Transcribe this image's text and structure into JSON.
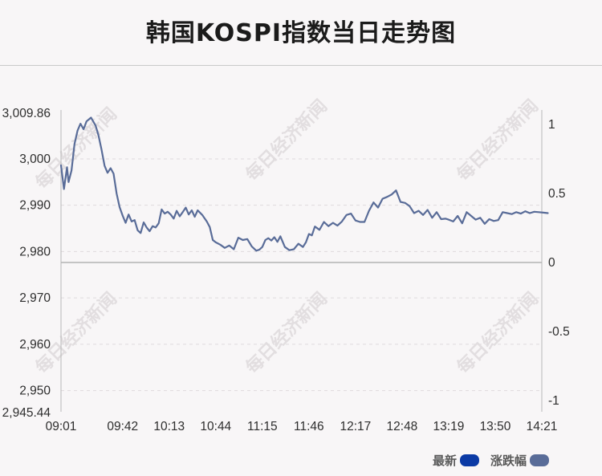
{
  "title": "韩国KOSPI指数当日走势图",
  "watermark": "每日经济新闻",
  "colors": {
    "latest": "#0b3aa5",
    "change": "#596c98"
  },
  "chart_data": {
    "type": "line",
    "title": "韩国KOSPI指数当日走势图",
    "prev_close": 2977.65,
    "ylim": [
      2945.44,
      3009.86
    ],
    "y_ticks": [
      "3,009.86",
      "3,000",
      "2,990",
      "2,980",
      "2,970",
      "2,960",
      "2,950",
      "2,945.44"
    ],
    "y_tick_values": [
      3009.86,
      3000,
      2990,
      2980,
      2970,
      2960,
      2950,
      2945.44
    ],
    "y2_ticks": [
      "1",
      "0.5",
      "0",
      "-0.5",
      "-1"
    ],
    "y2_tick_values": [
      1,
      0.5,
      0,
      -0.5,
      -1
    ],
    "x_ticks": [
      "09:01",
      "09:42",
      "10:13",
      "10:44",
      "11:15",
      "11:46",
      "12:17",
      "12:48",
      "13:19",
      "13:50",
      "14:21"
    ],
    "grid": "horizontal dashed",
    "legend_position": "bottom-right",
    "series": [
      {
        "name": "最新",
        "color": "#596c98",
        "x": [
          "09:01",
          "09:03",
          "09:05",
          "09:06",
          "09:08",
          "09:10",
          "09:12",
          "09:14",
          "09:16",
          "09:18",
          "09:21",
          "09:24",
          "09:26",
          "09:28",
          "09:30",
          "09:32",
          "09:34",
          "09:36",
          "09:38",
          "09:40",
          "09:42",
          "09:44",
          "09:46",
          "09:48",
          "09:50",
          "09:52",
          "09:54",
          "09:56",
          "09:58",
          "10:00",
          "10:02",
          "10:04",
          "10:06",
          "10:08",
          "10:10",
          "10:12",
          "10:14",
          "10:16",
          "10:18",
          "10:20",
          "10:22",
          "10:24",
          "10:26",
          "10:28",
          "10:30",
          "10:32",
          "10:35",
          "10:38",
          "10:40",
          "10:42",
          "10:44",
          "10:47",
          "10:50",
          "10:53",
          "10:56",
          "10:59",
          "11:02",
          "11:05",
          "11:08",
          "11:11",
          "11:13",
          "11:15",
          "11:17",
          "11:19",
          "11:21",
          "11:23",
          "11:25",
          "11:27",
          "11:30",
          "11:33",
          "11:36",
          "11:39",
          "11:42",
          "11:44",
          "11:46",
          "11:48",
          "11:50",
          "11:53",
          "11:56",
          "11:59",
          "12:02",
          "12:05",
          "12:08",
          "12:11",
          "12:14",
          "12:17",
          "12:20",
          "12:23",
          "12:26",
          "12:29",
          "12:32",
          "12:35",
          "12:38",
          "12:41",
          "12:44",
          "12:47",
          "12:50",
          "12:53",
          "12:56",
          "12:59",
          "13:02",
          "13:05",
          "13:08",
          "13:11",
          "13:14",
          "13:17",
          "13:19",
          "13:22",
          "13:25",
          "13:28",
          "13:31",
          "13:34",
          "13:37",
          "13:40",
          "13:43",
          "13:46",
          "13:49",
          "13:52",
          "13:55",
          "13:58",
          "14:01",
          "14:04",
          "14:07",
          "14:10",
          "14:13",
          "14:16",
          "14:19",
          "14:22",
          "14:25"
        ],
        "values": [
          2998.6,
          2993.5,
          2998.2,
          2995.0,
          2997.5,
          3003.2,
          3006.1,
          3007.6,
          3006.4,
          3008.1,
          3008.9,
          3007.2,
          3005.0,
          3002.0,
          2998.5,
          2997.0,
          2998.0,
          2996.8,
          2992.5,
          2989.6,
          2987.8,
          2986.2,
          2988.0,
          2986.5,
          2986.8,
          2984.6,
          2984.0,
          2986.3,
          2985.2,
          2984.4,
          2985.5,
          2985.2,
          2986.1,
          2989.1,
          2988.2,
          2988.6,
          2988.0,
          2987.1,
          2988.8,
          2987.6,
          2988.5,
          2989.5,
          2988.0,
          2988.9,
          2987.5,
          2988.9,
          2987.9,
          2986.5,
          2985.3,
          2982.5,
          2982.0,
          2981.5,
          2980.8,
          2981.3,
          2980.5,
          2983.0,
          2982.5,
          2982.7,
          2981.1,
          2980.2,
          2980.4,
          2981.0,
          2982.5,
          2982.9,
          2982.4,
          2983.1,
          2982.1,
          2983.3,
          2981.0,
          2980.3,
          2980.5,
          2981.7,
          2981.0,
          2982.0,
          2983.8,
          2983.5,
          2985.4,
          2984.7,
          2986.4,
          2985.5,
          2986.2,
          2985.6,
          2986.5,
          2987.9,
          2988.2,
          2986.7,
          2986.4,
          2986.4,
          2988.8,
          2990.6,
          2989.5,
          2991.4,
          2991.8,
          2992.3,
          2993.2,
          2990.7,
          2990.5,
          2989.8,
          2988.3,
          2988.8,
          2987.9,
          2989.0,
          2987.3,
          2988.5,
          2987.0,
          2987.1,
          2986.9,
          2986.5,
          2987.7,
          2986.1,
          2988.5,
          2987.7,
          2986.9,
          2987.3,
          2986.0,
          2987.0,
          2986.6,
          2986.8,
          2988.5,
          2988.3,
          2988.1,
          2988.5,
          2988.2,
          2988.7,
          2988.3,
          2988.6,
          2988.5,
          2988.4,
          2988.3
        ],
        "values_note": ""
      }
    ],
    "legend": [
      {
        "label": "最新",
        "color": "#0b3aa5"
      },
      {
        "label": "涨跌幅",
        "color": "#596c98"
      }
    ]
  }
}
